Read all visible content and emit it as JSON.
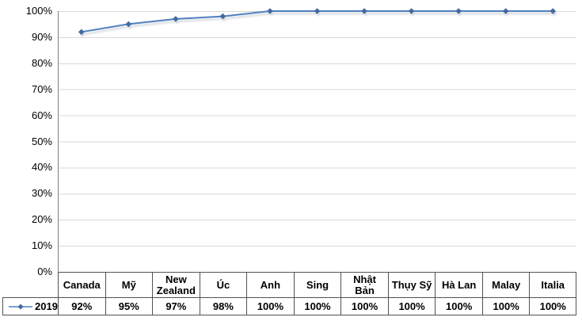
{
  "chart_data": {
    "type": "line",
    "title": "",
    "xlabel": "",
    "ylabel": "",
    "categories": [
      "Canada",
      "Mỹ",
      "New Zealand",
      "Úc",
      "Anh",
      "Sing",
      "Nhật Bản",
      "Thụy Sỹ",
      "Hà Lan",
      "Malay",
      "Italia"
    ],
    "series": [
      {
        "name": "2019",
        "values": [
          92,
          95,
          97,
          98,
          100,
          100,
          100,
          100,
          100,
          100,
          100
        ]
      }
    ],
    "value_labels": [
      "92%",
      "95%",
      "97%",
      "98%",
      "100%",
      "100%",
      "100%",
      "100%",
      "100%",
      "100%",
      "100%"
    ],
    "ylim": [
      0,
      100
    ],
    "ytick_labels": [
      "0%",
      "10%",
      "20%",
      "30%",
      "40%",
      "50%",
      "60%",
      "70%",
      "80%",
      "90%",
      "100%"
    ],
    "grid": true,
    "legend_position": "data-table-left",
    "colors": {
      "series_line": "#4f81bd",
      "marker": "#44699f",
      "shadow": "#aeb8c4",
      "gridline": "#d9d9d9",
      "axis_line": "#808080",
      "table_border": "#525252",
      "text": "#000000"
    }
  }
}
